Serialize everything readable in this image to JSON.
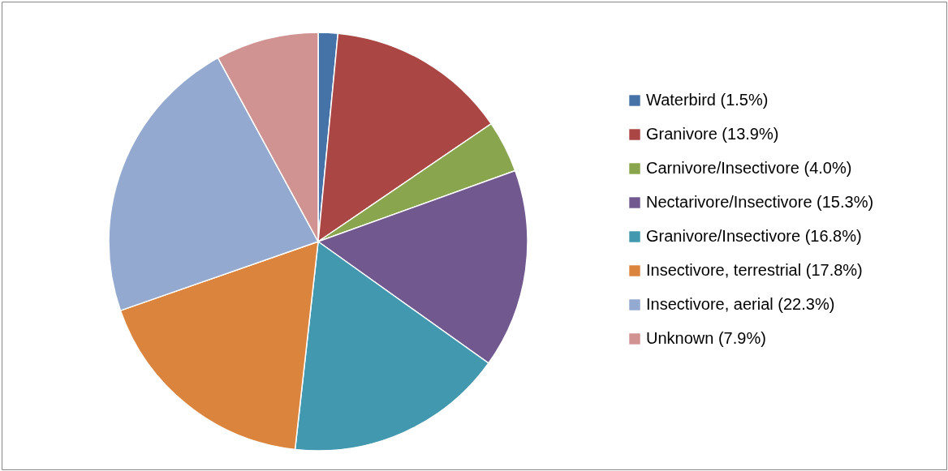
{
  "chart_data": {
    "type": "pie",
    "categories": [
      "Waterbird (1.5%)",
      "Granivore (13.9%)",
      "Carnivore/Insectivore (4.0%)",
      "Nectarivore/Insectivore (15.3%)",
      "Granivore/Insectivore (16.8%)",
      "Insectivore, terrestrial (17.8%)",
      "Insectivore, aerial (22.3%)",
      "Unknown (7.9%)"
    ],
    "values": [
      1.5,
      13.9,
      4.0,
      15.3,
      16.8,
      17.8,
      22.3,
      7.9
    ],
    "colors": [
      "#4572a7",
      "#aa4643",
      "#89a54e",
      "#71588f",
      "#4198af",
      "#db843d",
      "#93a9cf",
      "#d19392"
    ],
    "legend": "right"
  }
}
